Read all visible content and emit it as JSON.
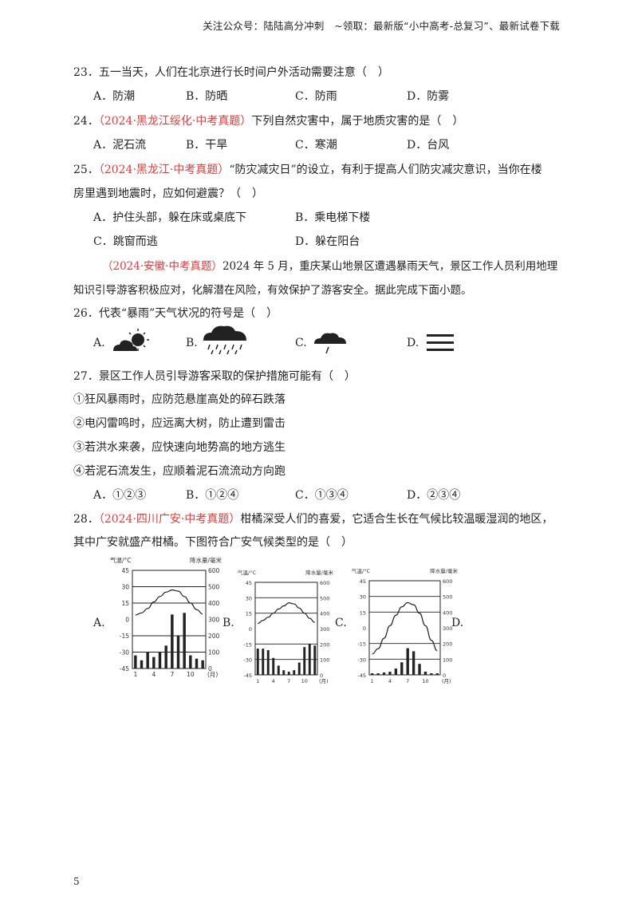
{
  "header": "关注公众号：陆陆高分冲刺　~领取：最新版“小中高考-总复习”、最新试卷下载",
  "q23": {
    "stem": "23．五一当天，人们在北京进行长时间户外活动需要注意（　）",
    "options": [
      "A．防潮",
      "B．防晒",
      "C．防雨",
      "D．防雾"
    ]
  },
  "q24": {
    "num": "24．",
    "source": "（2024·黑龙江绥化·中考真题）",
    "stem": "下列自然灾害中，属于地质灾害的是（　）",
    "options": [
      "A．泥石流",
      "B．干旱",
      "C．寒潮",
      "D．台风"
    ]
  },
  "q25": {
    "num": "25．",
    "source": "（2024·黑龙江·中考真题）",
    "stem1": "“防灾减灾日”的设立，有利于提高人们防灾减灾意识，当你在楼",
    "stem2": "房里遇到地震时，应如何避震？（　）",
    "options": [
      "A．护住头部，躲在床或桌底下",
      "B．乘电梯下楼",
      "C．跳窗而逃",
      "D．躲在阳台"
    ]
  },
  "passage": {
    "source": "（2024·安徽·中考真题）",
    "line1": "2024 年 5 月，重庆某山地景区遭遇暴雨天气，景区工作人员利用地理",
    "line2": "知识引导游客积极应对，化解潜在风险，有效保护了游客安全。据此完成下面小题。"
  },
  "q26": {
    "stem": "26．代表“暴雨”天气状况的符号是（　）",
    "options": [
      {
        "label": "A.",
        "icon": "partly-cloudy-icon"
      },
      {
        "label": "B.",
        "icon": "heavy-rain-icon"
      },
      {
        "label": "C.",
        "icon": "light-rain-icon"
      },
      {
        "label": "D.",
        "icon": "fog-icon"
      }
    ]
  },
  "q27": {
    "stem": "27．景区工作人员引导游客采取的保护措施可能有（　）",
    "items": [
      "①狂风暴雨时，应防范悬崖高处的碎石跌落",
      "②电闪雷鸣时，应远离大树，防止遭到雷击",
      "③若洪水来袭，应快速向地势高的地方逃生",
      "④若泥石流发生，应顺着泥石流流动方向跑"
    ],
    "options": [
      "A．①②③",
      "B．①②④",
      "C．①③④",
      "D．②③④"
    ]
  },
  "q28": {
    "num": "28．",
    "source": "（2024·四川广安·中考真题）",
    "stem1": "柑橘深受人们的喜爱，它适合生长在气候比较温暖湿润的地区，",
    "stem2": "其中广安就盛产柑橘。下图符合广安气候类型的是（　）",
    "labels": [
      "A.",
      "B.",
      "C.",
      "D."
    ]
  },
  "chart_data": [
    {
      "type": "bar+line",
      "label": "A",
      "temp_axis": "气温/°C",
      "precip_axis": "降水量/毫米",
      "temp_ticks": [
        "45",
        "30",
        "15",
        "0",
        "-15",
        "-30",
        "-45"
      ],
      "precip_ticks": [
        "600",
        "500",
        "400",
        "300",
        "200",
        "100",
        "0"
      ],
      "month_ticks": [
        "1",
        "4",
        "7",
        "10",
        "(月)"
      ],
      "temperature": [
        4,
        6,
        10,
        16,
        21,
        25,
        27,
        26,
        21,
        15,
        9,
        5
      ],
      "precipitation": [
        80,
        50,
        100,
        70,
        100,
        140,
        330,
        200,
        340,
        80,
        60,
        50
      ]
    },
    {
      "type": "bar+line",
      "label": "B",
      "temp_axis": "气温/°C",
      "precip_axis": "降水量/毫米",
      "temp_ticks": [
        "45",
        "30",
        "15",
        "0",
        "-15",
        "-30",
        "-45"
      ],
      "precip_ticks": [
        "600",
        "500",
        "400",
        "300",
        "200",
        "100",
        "0"
      ],
      "month_ticks": [
        "1",
        "4",
        "7",
        "10",
        "(月)"
      ],
      "temperature": [
        5,
        8,
        11,
        15,
        19,
        22,
        25,
        24,
        20,
        15,
        10,
        6
      ],
      "precipitation": [
        170,
        170,
        160,
        110,
        60,
        30,
        20,
        30,
        80,
        180,
        200,
        190
      ]
    },
    {
      "type": "bar+line",
      "label": "C",
      "temp_axis": "气温/°C",
      "precip_axis": "降水量/毫米",
      "temp_ticks": [
        "45",
        "30",
        "15",
        "0",
        "-15",
        "-30",
        "-45"
      ],
      "precip_ticks": [
        "600",
        "500",
        "400",
        "300",
        "200",
        "100",
        "0"
      ],
      "month_ticks": [
        "1",
        "4",
        "7",
        "10",
        "(月)"
      ],
      "temperature": [
        -25,
        -20,
        -10,
        2,
        12,
        20,
        24,
        22,
        14,
        2,
        -12,
        -22
      ],
      "precipitation": [
        10,
        10,
        15,
        20,
        40,
        80,
        170,
        150,
        70,
        20,
        10,
        10
      ]
    }
  ],
  "footer": "5"
}
